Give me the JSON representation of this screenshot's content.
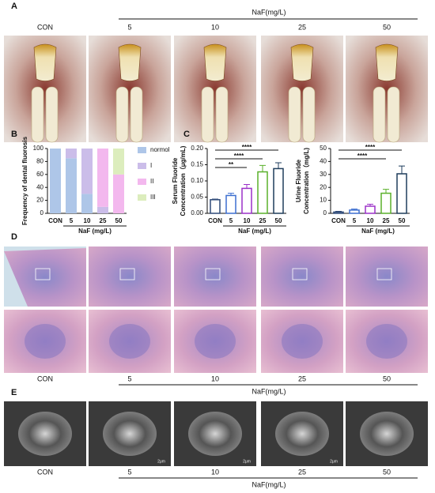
{
  "panel_labels": [
    "A",
    "B",
    "C",
    "D",
    "E"
  ],
  "panel_a": {
    "control": "CON",
    "doses": [
      "5",
      "10",
      "25",
      "50"
    ],
    "dose_label": "NaF(mg/L)"
  },
  "panel_d": {
    "control": "CON",
    "doses": [
      "5",
      "10",
      "25",
      "50"
    ],
    "dose_label": "NaF(mg/L)"
  },
  "panel_e": {
    "control": "CON",
    "doses": [
      "5",
      "10",
      "25",
      "50"
    ],
    "dose_label": "NaF(mg/L)",
    "scale_label": "2μm"
  },
  "chart_data": [
    {
      "type": "bar",
      "stacked": true,
      "ylabel": "Frequency of dental fluorosis",
      "xlabel": "NaF (mg/L)",
      "categories": [
        "CON",
        "5",
        "10",
        "25",
        "50"
      ],
      "series": [
        {
          "name": "normol",
          "color": "#aec6e8",
          "values": [
            100,
            85,
            30,
            0,
            0
          ]
        },
        {
          "name": "I",
          "color": "#cbbde9",
          "values": [
            0,
            15,
            70,
            10,
            0
          ]
        },
        {
          "name": "II",
          "color": "#f3b8ee",
          "values": [
            0,
            0,
            0,
            90,
            60
          ]
        },
        {
          "name": "III",
          "color": "#dcedbd",
          "values": [
            0,
            0,
            0,
            0,
            40
          ]
        }
      ],
      "ylim": [
        0,
        100
      ],
      "yticks": [
        0,
        20,
        40,
        60,
        80,
        100
      ],
      "legend": "right"
    },
    {
      "type": "errorbar",
      "ylabel": [
        "Serum Fluoride",
        "Concentration（μg/mL)"
      ],
      "xlabel": "NaF (mg/L)",
      "categories": [
        "CON",
        "5",
        "10",
        "25",
        "50"
      ],
      "values": [
        0.042,
        0.055,
        0.077,
        0.128,
        0.138
      ],
      "errors": [
        0.002,
        0.007,
        0.012,
        0.02,
        0.018
      ],
      "colors": [
        "#2e4a78",
        "#3d6fd0",
        "#9b30c8",
        "#5ab02a",
        "#1f3d5c"
      ],
      "ylim": [
        0,
        0.2
      ],
      "yticks": [
        {
          "value": 0,
          "label": "0.00"
        },
        {
          "value": 0.05,
          "label": "0.05"
        },
        {
          "value": 0.1,
          "label": "0.10"
        },
        {
          "value": 0.15,
          "label": "0.15"
        },
        {
          "value": 0.2,
          "label": "0.20"
        }
      ],
      "significance": [
        {
          "from": "CON",
          "to": "10",
          "label": "**"
        },
        {
          "from": "CON",
          "to": "25",
          "label": "****"
        },
        {
          "from": "CON",
          "to": "50",
          "label": "****"
        }
      ]
    },
    {
      "type": "errorbar",
      "ylabel": [
        "Urine Fluoride",
        "Concentration（mg/L)"
      ],
      "xlabel": "NaF (mg/L)",
      "categories": [
        "CON",
        "5",
        "10",
        "25",
        "50"
      ],
      "values": [
        1,
        2.5,
        5.5,
        15.5,
        30.5
      ],
      "errors": [
        0.5,
        0.8,
        1.5,
        3,
        6
      ],
      "colors": [
        "#2e4a78",
        "#3d6fd0",
        "#9b30c8",
        "#5ab02a",
        "#1f3d5c"
      ],
      "ylim": [
        0,
        50
      ],
      "yticks": [
        0,
        10,
        20,
        30,
        40,
        50
      ],
      "significance": [
        {
          "from": "CON",
          "to": "25",
          "label": "****"
        },
        {
          "from": "CON",
          "to": "50",
          "label": "****"
        }
      ]
    }
  ]
}
